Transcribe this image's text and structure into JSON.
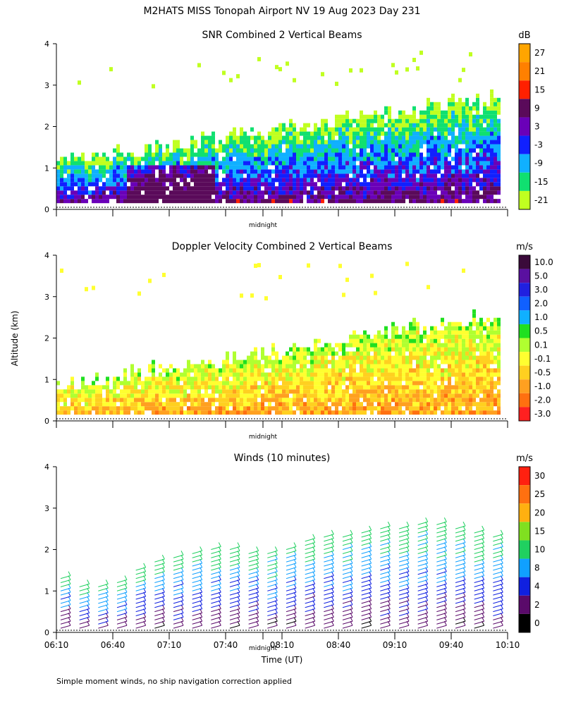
{
  "figure": {
    "title": "M2HATS MISS Tonopah Airport NV  19 Aug 2023 Day 231",
    "footnote": "Simple moment winds, no ship navigation correction applied",
    "shared_ylabel": "Altitude (km)",
    "shared_xlabel": "Time (UT)",
    "time_ticks": [
      "06:10",
      "06:40",
      "07:10",
      "07:40",
      "08:10",
      "08:40",
      "09:10",
      "09:40",
      "10:10"
    ],
    "midnight_label": "midnight",
    "y_ticks": [
      "0",
      "1",
      "2",
      "3",
      "4"
    ]
  },
  "chart_data": [
    {
      "type": "heatmap",
      "title": "SNR Combined 2 Vertical Beams",
      "xlabel": "Time (UT)",
      "ylabel": "Altitude (km)",
      "x_range": [
        "06:10",
        "10:10"
      ],
      "ylim": [
        0,
        4
      ],
      "colorbar": {
        "unit": "dB",
        "ticks": [
          "27",
          "21",
          "15",
          "9",
          "3",
          "-3",
          "-9",
          "-15",
          "-21"
        ],
        "colors": [
          "#ffa500",
          "#ff8000",
          "#ff2000",
          "#5a0a5a",
          "#6a00b8",
          "#1020ff",
          "#10b0ff",
          "#10e070",
          "#c0ff20"
        ]
      },
      "features": {
        "strongest_layer_top_km_start": 0.9,
        "strongest_layer_top_km_end": 2.1,
        "data_top_km_start": 1.1,
        "data_top_km_end": 2.7
      }
    },
    {
      "type": "heatmap",
      "title": "Doppler Velocity Combined 2 Vertical Beams",
      "xlabel": "Time (UT)",
      "ylabel": "Altitude (km)",
      "x_range": [
        "06:10",
        "10:10"
      ],
      "ylim": [
        0,
        4
      ],
      "colorbar": {
        "unit": "m/s",
        "ticks": [
          "10.0",
          "5.0",
          "3.0",
          "2.0",
          "1.0",
          "0.5",
          "0.1",
          "-0.1",
          "-0.5",
          "-1.0",
          "-2.0",
          "-3.0"
        ],
        "colors": [
          "#3a0a3a",
          "#5a10a0",
          "#2020e0",
          "#1060ff",
          "#10b0ff",
          "#20e020",
          "#b0ff30",
          "#ffff30",
          "#ffd020",
          "#ffa020",
          "#ff7010",
          "#ff2020"
        ]
      }
    },
    {
      "type": "scatter",
      "title": "Winds (10 minutes)",
      "xlabel": "Time (UT)",
      "ylabel": "Altitude (km)",
      "x_range": [
        "06:10",
        "10:10"
      ],
      "ylim": [
        0,
        4
      ],
      "colorbar": {
        "unit": "m/s",
        "ticks": [
          "30",
          "25",
          "20",
          "15",
          "10",
          "8",
          "4",
          "2",
          "0"
        ],
        "colors": [
          "#ff2010",
          "#ff7010",
          "#ffb010",
          "#80e020",
          "#20d060",
          "#10a0ff",
          "#1020e0",
          "#5a0a6a",
          "#000000"
        ]
      },
      "profile_times": [
        "06:10",
        "06:20",
        "06:30",
        "06:40",
        "06:50",
        "07:00",
        "07:10",
        "07:20",
        "07:30",
        "07:40",
        "07:50",
        "08:00",
        "08:10",
        "08:20",
        "08:30",
        "08:40",
        "08:50",
        "09:00",
        "09:10",
        "09:20",
        "09:30",
        "09:40",
        "09:50",
        "10:00"
      ],
      "profile_tops_km": [
        1.4,
        1.1,
        1.1,
        1.3,
        1.6,
        1.8,
        1.9,
        2.0,
        2.1,
        2.1,
        2.0,
        2.0,
        2.1,
        2.3,
        2.4,
        2.4,
        2.5,
        2.6,
        2.6,
        2.7,
        2.7,
        2.6,
        2.5,
        2.4
      ]
    }
  ]
}
